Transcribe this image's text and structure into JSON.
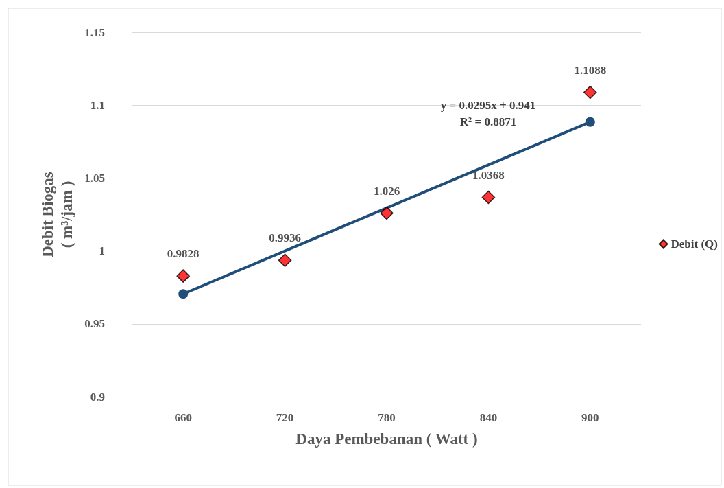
{
  "chart_data": {
    "type": "scatter",
    "xlabel": "Daya Pembebanan ( Watt )",
    "ylabel": "Debit Biogas\n( m³/jam )",
    "categories": [
      "660",
      "720",
      "780",
      "840",
      "900"
    ],
    "series": [
      {
        "name": "Debit (Q)",
        "color": "#ff0000",
        "values": [
          0.9828,
          0.9936,
          1.026,
          1.0368,
          1.1088
        ],
        "value_labels": [
          "0.9828",
          "0.9936",
          "1.026",
          "1.0368",
          "1.1088"
        ],
        "marker": "diamond"
      },
      {
        "type": "line",
        "color": "#1f4e79",
        "x": [
          "660",
          "900"
        ],
        "values": [
          0.9705,
          1.0885
        ],
        "marker": "circle",
        "line_style": "solid"
      }
    ],
    "ylim": [
      0.9,
      1.15
    ],
    "yticks": [
      0.9,
      0.95,
      1,
      1.05,
      1.1,
      1.15
    ],
    "grid": "y",
    "legend": "right",
    "annotations": [
      "y = 0.0295x + 0.941\nR² = 0.8871"
    ]
  }
}
